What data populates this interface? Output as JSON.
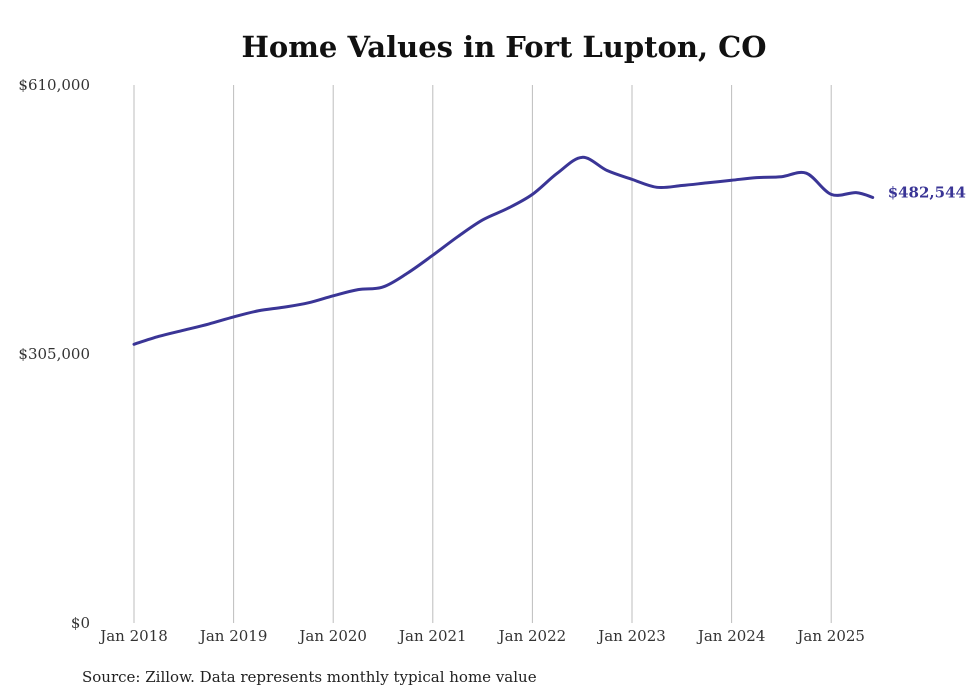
{
  "chart_data": {
    "type": "line",
    "title": "Home Values in Fort Lupton, CO",
    "xlabel": "",
    "ylabel": "",
    "x_ticks": [
      "Jan 2018",
      "Jan 2019",
      "Jan 2020",
      "Jan 2021",
      "Jan 2022",
      "Jan 2023",
      "Jan 2024",
      "Jan 2025"
    ],
    "y_ticks": [
      "$0",
      "$305,000",
      "$610,000"
    ],
    "ylim": [
      0,
      610000
    ],
    "xlim": [
      "2018-01",
      "2025-06"
    ],
    "grid": "vertical lines at each January",
    "color": "#3a3596",
    "end_label": "$482,544",
    "series": [
      {
        "x": [
          "2018-01",
          "2018-04",
          "2018-07",
          "2018-10",
          "2019-01",
          "2019-04",
          "2019-07",
          "2019-10",
          "2020-01",
          "2020-04",
          "2020-07",
          "2020-10",
          "2021-01",
          "2021-04",
          "2021-07",
          "2021-10",
          "2022-01",
          "2022-04",
          "2022-07",
          "2022-10",
          "2023-01",
          "2023-04",
          "2023-07",
          "2023-10",
          "2024-01",
          "2024-04",
          "2024-07",
          "2024-10",
          "2025-01",
          "2025-04",
          "2025-06"
        ],
        "values": [
          316000,
          325000,
          332000,
          339000,
          347000,
          354000,
          358000,
          363000,
          371000,
          378000,
          381000,
          397000,
          417000,
          438000,
          457000,
          470000,
          486000,
          510000,
          528000,
          513000,
          503000,
          494000,
          496000,
          499000,
          502000,
          505000,
          506000,
          510000,
          486000,
          488000,
          482544
        ]
      }
    ]
  },
  "footer": {
    "source": "Source: Zillow. Data represents monthly typical home value"
  }
}
